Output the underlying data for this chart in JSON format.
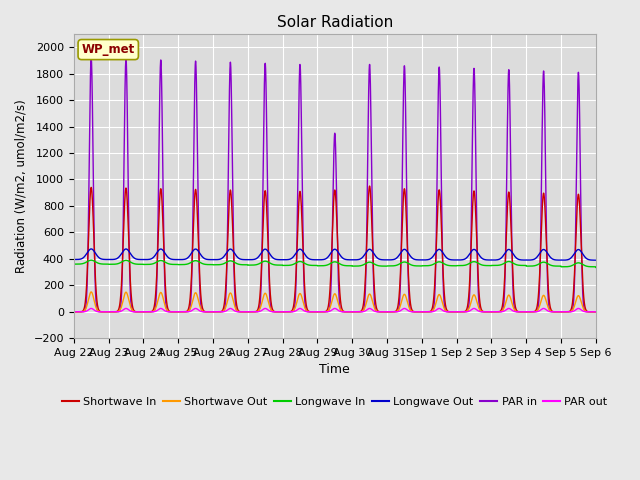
{
  "title": "Solar Radiation",
  "xlabel": "Time",
  "ylabel": "Radiation (W/m2, umol/m2/s)",
  "ylim": [
    -200,
    2100
  ],
  "yticks": [
    -200,
    0,
    200,
    400,
    600,
    800,
    1000,
    1200,
    1400,
    1600,
    1800,
    2000
  ],
  "x_labels": [
    "Aug 22",
    "Aug 23",
    "Aug 24",
    "Aug 25",
    "Aug 26",
    "Aug 27",
    "Aug 28",
    "Aug 29",
    "Aug 30",
    "Aug 31",
    "Sep 1",
    "Sep 2",
    "Sep 3",
    "Sep 4",
    "Sep 5",
    "Sep 6"
  ],
  "annotation": "WP_met",
  "series": {
    "shortwave_in": {
      "color": "#cc0000",
      "label": "Shortwave In"
    },
    "shortwave_out": {
      "color": "#ff9900",
      "label": "Shortwave Out"
    },
    "longwave_in": {
      "color": "#00cc00",
      "label": "Longwave In"
    },
    "longwave_out": {
      "color": "#0000cc",
      "label": "Longwave Out"
    },
    "par_in": {
      "color": "#8800cc",
      "label": "PAR in"
    },
    "par_out": {
      "color": "#ff00ff",
      "label": "PAR out"
    }
  },
  "n_days": 16,
  "bg_color": "#dcdcdc",
  "fig_color": "#e8e8e8",
  "grid_color": "#ffffff"
}
